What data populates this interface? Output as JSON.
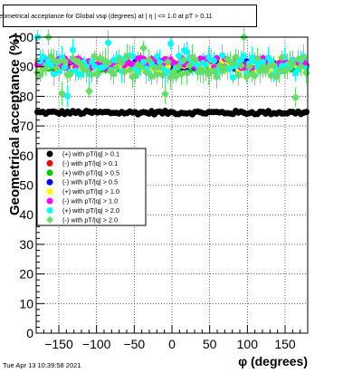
{
  "chart_data": {
    "type": "scatter",
    "title": "eometrical acceptance for Global vsφ (degrees) at | η | <= 1.0 at pT > 0.11",
    "xlabel": "φ (degrees)",
    "ylabel": "Geometrical acceptance (%)",
    "xlim": [
      -180,
      180
    ],
    "ylim": [
      0,
      100
    ],
    "x_ticks": [
      -150,
      -100,
      -50,
      0,
      50,
      100,
      150
    ],
    "y_ticks": [
      0,
      10,
      20,
      30,
      40,
      50,
      60,
      70,
      80,
      90,
      100
    ],
    "grid": true,
    "legend_position": "middle-left",
    "series": [
      {
        "name": "(+) with pT/|q| > 0.1",
        "color": "#000000",
        "marker": "circle",
        "y_level": 74.5,
        "spread": 0.6,
        "err": 0.3
      },
      {
        "name": "(-) with pT/|q| > 0.1",
        "color": "#ff0000",
        "marker": "circle",
        "y_level": 90.5,
        "spread": 1.2,
        "err": 0.6
      },
      {
        "name": "(+) with pT/|q| > 0.5",
        "color": "#00cc00",
        "marker": "circle",
        "y_level": 90.0,
        "spread": 1.5,
        "err": 1.0
      },
      {
        "name": "(-) with pT/|q| > 0.5",
        "color": "#0000ff",
        "marker": "circle",
        "y_level": 90.8,
        "spread": 1.3,
        "err": 1.0
      },
      {
        "name": "(+) with pT/|q| > 1.0",
        "color": "#ffff00",
        "marker": "circle",
        "y_level": 90.3,
        "spread": 1.6,
        "err": 1.2
      },
      {
        "name": "(-) with pT/|q| > 1.0",
        "color": "#ff00ff",
        "marker": "circle",
        "y_level": 91.2,
        "spread": 1.8,
        "err": 1.4
      },
      {
        "name": "(+) with pT/|q| > 2.0",
        "color": "#00ffff",
        "marker": "circle",
        "y_level": 90.5,
        "spread": 3.2,
        "err": 3.0
      },
      {
        "name": "(-) with pT/|q| > 2.0",
        "color": "#66dd66",
        "marker": "diamond",
        "y_level": 90.0,
        "spread": 3.6,
        "err": 3.2
      }
    ]
  },
  "footer": {
    "timestamp": "Tue Apr 13 10:39:58 2021"
  }
}
